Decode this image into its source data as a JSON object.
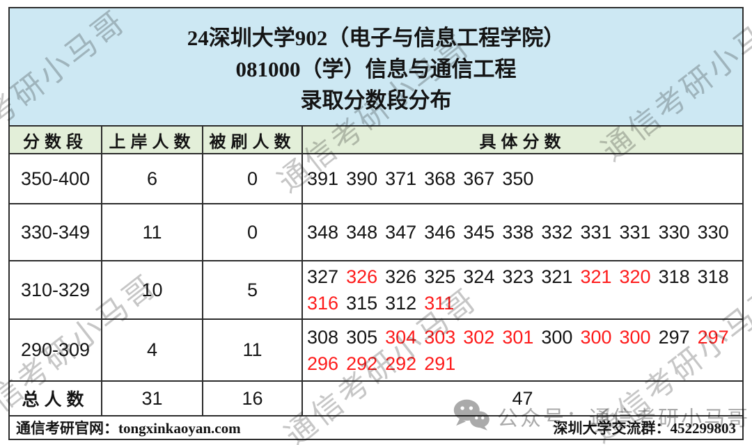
{
  "colors": {
    "title_bg": "#cde8f3",
    "header_bg": "#e3efd9",
    "border": "#2b2b2b",
    "score_red": "#fe1b1b",
    "text": "#141414",
    "watermark": "#8e8e8e",
    "overlay": "#9b9b9b"
  },
  "title": {
    "line1": "24深圳大学902（电子与信息工程学院）",
    "line2": "081000（学）信息与通信工程",
    "line3": "录取分数段分布"
  },
  "table": {
    "headers": [
      "分数段",
      "上岸人数",
      "被刷人数",
      "具体分数"
    ],
    "rows": [
      {
        "range": "350-400",
        "admitted": "6",
        "rejected": "0",
        "scores": [
          {
            "v": "391",
            "red": false
          },
          {
            "v": "390",
            "red": false
          },
          {
            "v": "371",
            "red": false
          },
          {
            "v": "368",
            "red": false
          },
          {
            "v": "367",
            "red": false
          },
          {
            "v": "350",
            "red": false
          }
        ]
      },
      {
        "range": "330-349",
        "admitted": "11",
        "rejected": "0",
        "scores": [
          {
            "v": "348",
            "red": false
          },
          {
            "v": "348",
            "red": false
          },
          {
            "v": "347",
            "red": false
          },
          {
            "v": "346",
            "red": false
          },
          {
            "v": "345",
            "red": false
          },
          {
            "v": "338",
            "red": false
          },
          {
            "v": "332",
            "red": false
          },
          {
            "v": "331",
            "red": false
          },
          {
            "v": "331",
            "red": false
          },
          {
            "v": "330",
            "red": false
          },
          {
            "v": "330",
            "red": false
          }
        ]
      },
      {
        "range": "310-329",
        "admitted": "10",
        "rejected": "5",
        "scores": [
          {
            "v": "327",
            "red": false
          },
          {
            "v": "326",
            "red": true
          },
          {
            "v": "326",
            "red": false
          },
          {
            "v": "325",
            "red": false
          },
          {
            "v": "324",
            "red": false
          },
          {
            "v": "323",
            "red": false
          },
          {
            "v": "321",
            "red": false
          },
          {
            "v": "321",
            "red": true
          },
          {
            "v": "320",
            "red": true
          },
          {
            "v": "318",
            "red": false
          },
          {
            "v": "318",
            "red": false
          },
          {
            "v": "316",
            "red": true
          },
          {
            "v": "315",
            "red": false
          },
          {
            "v": "312",
            "red": false
          },
          {
            "v": "311",
            "red": true
          }
        ]
      },
      {
        "range": "290-309",
        "admitted": "4",
        "rejected": "11",
        "scores": [
          {
            "v": "308",
            "red": false
          },
          {
            "v": "305",
            "red": false
          },
          {
            "v": "304",
            "red": true
          },
          {
            "v": "303",
            "red": true
          },
          {
            "v": "302",
            "red": true
          },
          {
            "v": "301",
            "red": true
          },
          {
            "v": "300",
            "red": false
          },
          {
            "v": "300",
            "red": true
          },
          {
            "v": "300",
            "red": true
          },
          {
            "v": "297",
            "red": false
          },
          {
            "v": "297",
            "red": true
          },
          {
            "v": "296",
            "red": true
          },
          {
            "v": "292",
            "red": true
          },
          {
            "v": "292",
            "red": true
          },
          {
            "v": "291",
            "red": true
          }
        ]
      }
    ],
    "total": {
      "label": "总人数",
      "admitted": "31",
      "rejected": "16",
      "scores_total": "47"
    }
  },
  "footer": {
    "left": "通信考研官网：tongxinkaoyan.com",
    "right": "深圳大学交流群：452299803"
  },
  "overlay": {
    "icon": "wechat-icon",
    "label": "公众号：通信考研小马哥"
  },
  "watermark": {
    "text": "通信考研小马哥"
  },
  "chart_data": {
    "type": "table",
    "title": "24深圳大学902（电子与信息工程学院）081000（学）信息与通信工程 录取分数段分布",
    "columns": [
      "分数段",
      "上岸人数",
      "被刷人数",
      "具体分数"
    ],
    "rows": [
      [
        "350-400",
        6,
        0,
        "391 390 371 368 367 350"
      ],
      [
        "330-349",
        11,
        0,
        "348 348 347 346 345 338 332 331 331 330 330"
      ],
      [
        "310-329",
        10,
        5,
        "327 326 326 325 324 323 321 321 320 318 318 316 315 312 311"
      ],
      [
        "290-309",
        4,
        11,
        "308 305 304 303 302 301 300 300 300 297 297 296 292 292 291"
      ],
      [
        "总人数",
        31,
        16,
        "47"
      ]
    ],
    "red_values": {
      "310-329": [
        326,
        321,
        320,
        316,
        311
      ],
      "290-309": [
        304,
        303,
        302,
        301,
        300,
        300,
        297,
        296,
        292,
        292,
        291
      ]
    }
  }
}
